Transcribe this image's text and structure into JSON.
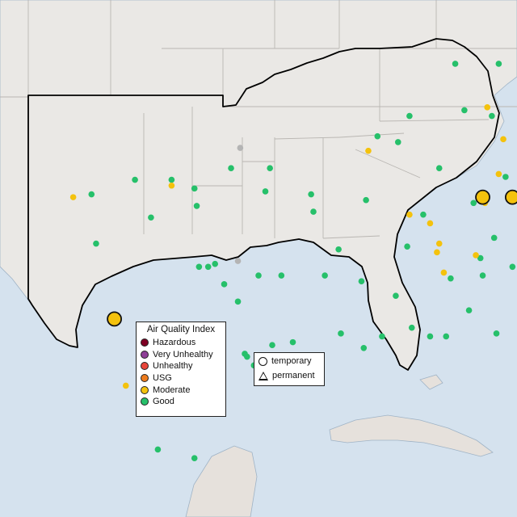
{
  "map": {
    "colors": {
      "water": "#d5e2ee",
      "land": "#eae8e5",
      "border": "#b9b6b2",
      "region": "#000000",
      "caribbean": "#e6e1dc"
    },
    "monitors": [
      {
        "cat": "good",
        "lon": -102.0,
        "lat": 35.3
      },
      {
        "cat": "good",
        "lon": -100.1,
        "lat": 35.8
      },
      {
        "cat": "good",
        "lon": -98.5,
        "lat": 35.8
      },
      {
        "cat": "good",
        "lon": -97.5,
        "lat": 35.5
      },
      {
        "cat": "good",
        "lon": -95.9,
        "lat": 36.2
      },
      {
        "cat": "good",
        "lon": -97.4,
        "lat": 34.9
      },
      {
        "cat": "good",
        "lon": -99.4,
        "lat": 34.5
      },
      {
        "cat": "good",
        "lon": -101.8,
        "lat": 33.6
      },
      {
        "cat": "good",
        "lon": -96.9,
        "lat": 32.8
      },
      {
        "cat": "good",
        "lon": -96.6,
        "lat": 32.9
      },
      {
        "cat": "good",
        "lon": -97.3,
        "lat": 32.8
      },
      {
        "cat": "good",
        "lon": -96.2,
        "lat": 32.2
      },
      {
        "cat": "good",
        "lon": -94.7,
        "lat": 32.5
      },
      {
        "cat": "good",
        "lon": -97.7,
        "lat": 30.3
      },
      {
        "cat": "good",
        "lon": -98.5,
        "lat": 29.5
      },
      {
        "cat": "good",
        "lon": -95.3,
        "lat": 29.8
      },
      {
        "cat": "good",
        "lon": -95.2,
        "lat": 29.7
      },
      {
        "cat": "good",
        "lon": -94.9,
        "lat": 29.4
      },
      {
        "cat": "good",
        "lon": -94.1,
        "lat": 30.1
      },
      {
        "cat": "good",
        "lon": -93.2,
        "lat": 30.2
      },
      {
        "cat": "good",
        "lon": -97.4,
        "lat": 27.8
      },
      {
        "cat": "good",
        "lon": -97.5,
        "lat": 26.2
      },
      {
        "cat": "good",
        "lon": -99.1,
        "lat": 26.5
      },
      {
        "cat": "good",
        "lon": -91.1,
        "lat": 30.5
      },
      {
        "cat": "good",
        "lon": -91.8,
        "lat": 32.5
      },
      {
        "cat": "good",
        "lon": -90.2,
        "lat": 32.3
      },
      {
        "cat": "good",
        "lon": -90.1,
        "lat": 30.0
      },
      {
        "cat": "good",
        "lon": -89.3,
        "lat": 30.4
      },
      {
        "cat": "good",
        "lon": -88.0,
        "lat": 30.7
      },
      {
        "cat": "good",
        "lon": -88.7,
        "lat": 31.8
      },
      {
        "cat": "good",
        "lon": -87.2,
        "lat": 30.4
      },
      {
        "cat": "good",
        "lon": -86.5,
        "lat": 30.4
      },
      {
        "cat": "good",
        "lon": -84.3,
        "lat": 30.5
      },
      {
        "cat": "good",
        "lon": -82.3,
        "lat": 29.7
      },
      {
        "cat": "good",
        "lon": -81.6,
        "lat": 30.3
      },
      {
        "cat": "good",
        "lon": -81.4,
        "lat": 28.5
      },
      {
        "cat": "good",
        "lon": -81.0,
        "lat": 29.2
      },
      {
        "cat": "good",
        "lon": -80.6,
        "lat": 28.2
      },
      {
        "cat": "good",
        "lon": -81.1,
        "lat": 32.1
      },
      {
        "cat": "good",
        "lon": -79.9,
        "lat": 32.8
      },
      {
        "cat": "good",
        "lon": -81.0,
        "lat": 34.0
      },
      {
        "cat": "good",
        "lon": -82.4,
        "lat": 34.8
      },
      {
        "cat": "good",
        "lon": -80.8,
        "lat": 35.2
      },
      {
        "cat": "good",
        "lon": -78.6,
        "lat": 35.8
      },
      {
        "cat": "good",
        "lon": -77.9,
        "lat": 34.2
      },
      {
        "cat": "good",
        "lon": -79.8,
        "lat": 36.1
      },
      {
        "cat": "good",
        "lon": -80.2,
        "lat": 36.1
      },
      {
        "cat": "good",
        "lon": -82.6,
        "lat": 35.6
      },
      {
        "cat": "good",
        "lon": -77.4,
        "lat": 37.5
      },
      {
        "cat": "good",
        "lon": -76.3,
        "lat": 36.9
      },
      {
        "cat": "good",
        "lon": -79.9,
        "lat": 37.3
      },
      {
        "cat": "good",
        "lon": -78.5,
        "lat": 38.0
      },
      {
        "cat": "good",
        "lon": -81.6,
        "lat": 38.4
      },
      {
        "cat": "good",
        "lon": -80.7,
        "lat": 40.0
      },
      {
        "cat": "good",
        "lon": -84.5,
        "lat": 38.0
      },
      {
        "cat": "good",
        "lon": -85.7,
        "lat": 38.2
      },
      {
        "cat": "good",
        "lon": -86.8,
        "lat": 36.2
      },
      {
        "cat": "good",
        "lon": -85.3,
        "lat": 35.0
      },
      {
        "cat": "good",
        "lon": -83.9,
        "lat": 35.9
      },
      {
        "cat": "good",
        "lon": -84.4,
        "lat": 33.8
      },
      {
        "cat": "good",
        "lon": -83.6,
        "lat": 32.8
      },
      {
        "cat": "good",
        "lon": -82.0,
        "lat": 33.5
      },
      {
        "cat": "good",
        "lon": -84.9,
        "lat": 32.5
      },
      {
        "cat": "good",
        "lon": -86.3,
        "lat": 32.4
      },
      {
        "cat": "good",
        "lon": -85.5,
        "lat": 31.3
      },
      {
        "cat": "good",
        "lon": -88.2,
        "lat": 33.5
      },
      {
        "cat": "good",
        "lon": -90.0,
        "lat": 35.1
      },
      {
        "cat": "good",
        "lon": -92.3,
        "lat": 34.7
      },
      {
        "cat": "good",
        "lon": -94.2,
        "lat": 36.2
      },
      {
        "cat": "good",
        "lon": -92.4,
        "lat": 35.3
      },
      {
        "cat": "good",
        "lon": -94.4,
        "lat": 35.4
      },
      {
        "cat": "good",
        "lon": -89.5,
        "lat": 37.3
      },
      {
        "cat": "good",
        "lon": -88.6,
        "lat": 37.1
      },
      {
        "cat": "good",
        "lon": -88.1,
        "lat": 38.0
      },
      {
        "cat": "good",
        "lon": -86.1,
        "lat": 39.8
      },
      {
        "cat": "good",
        "lon": -84.2,
        "lat": 39.8
      },
      {
        "cat": "good",
        "lon": -82.9,
        "lat": 40.0
      },
      {
        "cat": "good",
        "lon": -77.0,
        "lat": 38.9
      },
      {
        "cat": "good",
        "lon": -76.6,
        "lat": 39.3
      },
      {
        "cat": "good",
        "lon": -77.4,
        "lat": 39.4
      },
      {
        "cat": "good",
        "lon": -75.6,
        "lat": 39.7
      },
      {
        "cat": "good",
        "lon": -79.0,
        "lat": 39.6
      },
      {
        "cat": "good",
        "lon": -80.0,
        "lat": 40.4
      },
      {
        "cat": "good",
        "lon": -78.2,
        "lat": 36.6
      },
      {
        "cat": "good",
        "lon": -76.8,
        "lat": 35.5
      },
      {
        "cat": "good",
        "lon": -82.9,
        "lat": 36.5
      },
      {
        "cat": "good",
        "lon": -87.5,
        "lat": 34.6
      },
      {
        "cat": "good",
        "lon": -95.6,
        "lat": 31.6
      },
      {
        "cat": "good",
        "lon": -93.7,
        "lat": 32.5
      },
      {
        "cat": "good",
        "lon": -91.2,
        "lat": 33.4
      },
      {
        "cat": "good",
        "lon": -85.0,
        "lat": 33.1
      },
      {
        "cat": "good",
        "lon": -82.4,
        "lat": 31.2
      },
      {
        "cat": "good",
        "lon": -82.5,
        "lat": 27.9
      },
      {
        "cat": "good",
        "lon": -80.3,
        "lat": 27.2
      },
      {
        "cat": "good",
        "lon": -81.8,
        "lat": 26.6
      },
      {
        "cat": "good",
        "lon": -80.9,
        "lat": 35.9
      },
      {
        "cat": "moderate",
        "lon": -102.8,
        "lat": 35.2
      },
      {
        "cat": "moderate",
        "lon": -98.5,
        "lat": 35.6
      },
      {
        "cat": "moderate",
        "lon": -89.9,
        "lat": 36.8
      },
      {
        "cat": "moderate",
        "lon": -87.2,
        "lat": 34.3
      },
      {
        "cat": "moderate",
        "lon": -86.8,
        "lat": 33.6
      },
      {
        "cat": "moderate",
        "lon": -86.9,
        "lat": 33.3
      },
      {
        "cat": "moderate",
        "lon": -86.6,
        "lat": 32.6
      },
      {
        "cat": "moderate",
        "lon": -85.2,
        "lat": 33.2
      },
      {
        "cat": "moderate",
        "lon": -84.8,
        "lat": 35.0
      },
      {
        "cat": "moderate",
        "lon": -84.2,
        "lat": 36.0
      },
      {
        "cat": "moderate",
        "lon": -84.7,
        "lat": 38.3
      },
      {
        "cat": "moderate",
        "lon": -81.8,
        "lat": 37.1
      },
      {
        "cat": "moderate",
        "lon": -88.1,
        "lat": 34.6
      },
      {
        "cat": "moderate",
        "lon": -82.2,
        "lat": 26.8
      },
      {
        "cat": "moderate",
        "lon": -81.9,
        "lat": 27.8
      },
      {
        "cat": "moderate",
        "lon": -100.5,
        "lat": 28.7
      },
      {
        "cat": "moderate",
        "lon": -76.7,
        "lat": 40.4
      },
      {
        "cat": "moderate",
        "lon": -75.1,
        "lat": 40.1
      },
      {
        "cat": "moderate",
        "lon": -84.0,
        "lat": 37.2
      },
      {
        "cat": "moderate",
        "lon": -84.9,
        "lat": 35.2,
        "big": true
      },
      {
        "cat": "moderate",
        "lon": -83.6,
        "lat": 35.2,
        "big": true
      },
      {
        "cat": "moderate",
        "lon": -101.0,
        "lat": 31.0,
        "big": true
      },
      {
        "cat": "moderate",
        "lon": -80.1,
        "lat": 26.9,
        "big": true
      },
      {
        "cat": "moderate",
        "lon": -80.1,
        "lat": 25.9,
        "big": true
      },
      {
        "cat": "moderate",
        "lon": -80.3,
        "lat": 25.7,
        "big": true
      },
      {
        "cat": "moderate",
        "lon": -80.2,
        "lat": 25.5,
        "big": true
      },
      {
        "cat": "moderate",
        "lon": -80.4,
        "lat": 25.0,
        "big": true
      },
      {
        "cat": "usg",
        "lon": -82.0,
        "lat": 28.0,
        "big": true
      },
      {
        "cat": "nodata",
        "lon": -95.5,
        "lat": 36.9
      },
      {
        "cat": "nodata",
        "lon": -95.6,
        "lat": 33.0
      },
      {
        "cat": "nodata",
        "lon": -81.1,
        "lat": 27.5
      },
      {
        "cat": "nodata",
        "lon": -80.8,
        "lat": 26.0
      },
      {
        "cat": "nodata",
        "lon": -82.8,
        "lat": 39.0
      }
    ]
  },
  "legend": {
    "title": "Air Quality Index",
    "items": [
      {
        "label": "Hazardous",
        "color": "#7e0023"
      },
      {
        "label": "Very Unhealthy",
        "color": "#8f3f97"
      },
      {
        "label": "Unhealthy",
        "color": "#e8463a"
      },
      {
        "label": "USG",
        "color": "#ee7c1e"
      },
      {
        "label": "Moderate",
        "color": "#f4c20d"
      },
      {
        "label": "Good",
        "color": "#26c06a"
      }
    ]
  },
  "type_legend": {
    "temporary": "temporary",
    "permanent": "permanent"
  }
}
